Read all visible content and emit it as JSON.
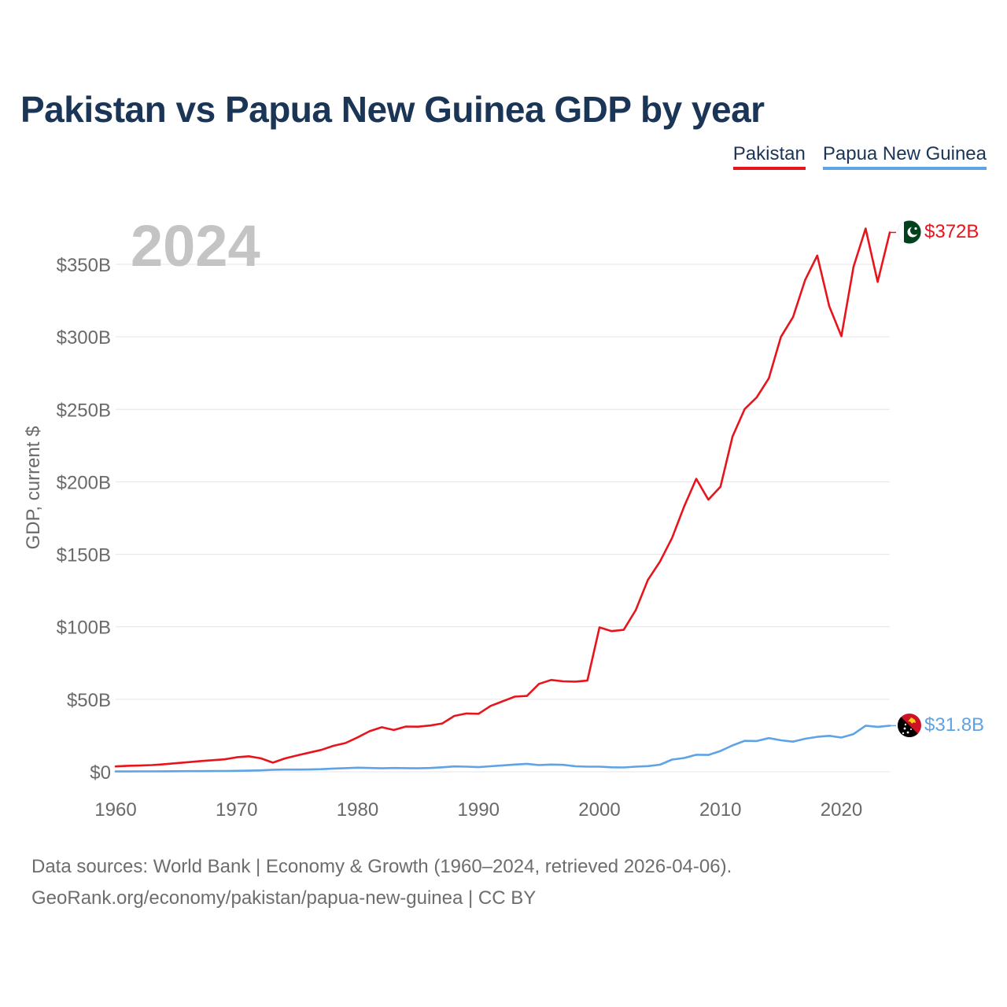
{
  "title": "Pakistan vs Papua New Guinea GDP by year",
  "legend": [
    {
      "label": "Pakistan",
      "color": "#e8141c"
    },
    {
      "label": "Papua New Guinea",
      "color": "#5ea3e6"
    }
  ],
  "source": {
    "line1": "Data sources: World Bank | Economy & Growth (1960–2024, retrieved 2026-04-06).",
    "line2": "GeoRank.org/economy/pakistan/papua-new-guinea | CC BY"
  },
  "chart_data": {
    "type": "line",
    "title": "Pakistan vs Papua New Guinea GDP by year",
    "year_label": "2024",
    "xlabel": "",
    "ylabel": "GDP, current $",
    "xlim": [
      1960,
      2024
    ],
    "ylim": [
      0,
      370
    ],
    "x_ticks": [
      1960,
      1970,
      1980,
      1990,
      2000,
      2010,
      2020
    ],
    "x_tick_labels": [
      "1960",
      "1970",
      "1980",
      "1990",
      "2000",
      "2010",
      "2020"
    ],
    "y_ticks": [
      0,
      50,
      100,
      150,
      200,
      250,
      300,
      350
    ],
    "y_tick_labels": [
      "$0",
      "$50B",
      "$100B",
      "$150B",
      "$200B",
      "$250B",
      "$300B",
      "$350B"
    ],
    "grid": true,
    "legend_position": "top-right",
    "units": "billions of current US$",
    "x": [
      1960,
      1961,
      1962,
      1963,
      1964,
      1965,
      1966,
      1967,
      1968,
      1969,
      1970,
      1971,
      1972,
      1973,
      1974,
      1975,
      1976,
      1977,
      1978,
      1979,
      1980,
      1981,
      1982,
      1983,
      1984,
      1985,
      1986,
      1987,
      1988,
      1989,
      1990,
      1991,
      1992,
      1993,
      1994,
      1995,
      1996,
      1997,
      1998,
      1999,
      2000,
      2001,
      2002,
      2003,
      2004,
      2005,
      2006,
      2007,
      2008,
      2009,
      2010,
      2011,
      2012,
      2013,
      2014,
      2015,
      2016,
      2017,
      2018,
      2019,
      2020,
      2021,
      2022,
      2023,
      2024
    ],
    "series": [
      {
        "name": "Pakistan",
        "color": "#e8141c",
        "end_label": "$372B",
        "flag": "pakistan-flag",
        "values": [
          3.7,
          4.1,
          4.3,
          4.6,
          5.2,
          5.9,
          6.6,
          7.4,
          8.0,
          8.6,
          10.0,
          10.7,
          9.3,
          6.3,
          9.2,
          11.3,
          13.2,
          15.1,
          17.9,
          19.8,
          23.7,
          28.0,
          30.7,
          28.8,
          31.2,
          31.1,
          31.9,
          33.3,
          38.5,
          40.2,
          40.0,
          45.4,
          48.6,
          51.8,
          52.3,
          60.6,
          63.3,
          62.4,
          62.2,
          62.9,
          99.6,
          97.0,
          97.9,
          111.5,
          132.3,
          145.0,
          161.3,
          183.0,
          202.1,
          187.7,
          196.6,
          231.2,
          250.1,
          258.3,
          271.4,
          299.9,
          313.6,
          339.2,
          356.1,
          321.0,
          300.4,
          348.3,
          374.7,
          337.9,
          372.0
        ]
      },
      {
        "name": "Papua New Guinea",
        "color": "#5ea3e6",
        "end_label": "$31.8B",
        "flag": "papua-new-guinea-flag",
        "values": [
          0.23,
          0.24,
          0.26,
          0.28,
          0.32,
          0.36,
          0.41,
          0.46,
          0.5,
          0.56,
          0.65,
          0.75,
          0.95,
          1.4,
          1.5,
          1.5,
          1.6,
          1.8,
          2.2,
          2.5,
          2.8,
          2.6,
          2.4,
          2.6,
          2.5,
          2.4,
          2.6,
          3.1,
          3.7,
          3.5,
          3.2,
          3.8,
          4.4,
          5.0,
          5.5,
          4.6,
          5.0,
          4.8,
          3.8,
          3.5,
          3.5,
          3.1,
          3.0,
          3.5,
          3.9,
          4.9,
          8.4,
          9.5,
          11.7,
          11.6,
          14.3,
          18.2,
          21.3,
          21.2,
          23.2,
          21.7,
          20.8,
          22.8,
          24.1,
          24.8,
          23.6,
          26.0,
          31.8,
          31.0,
          31.8
        ]
      }
    ]
  }
}
